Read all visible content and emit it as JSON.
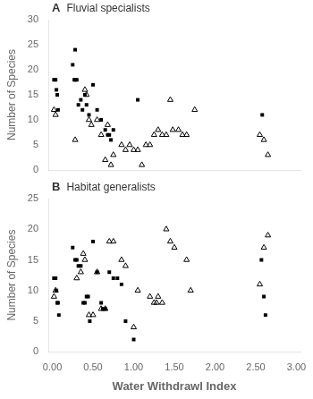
{
  "chart_data": [
    {
      "type": "scatter",
      "title": "Fluvial specialists",
      "annotations": [
        "A"
      ],
      "ylabel": "Number of Species",
      "series": [
        {
          "marker": "square",
          "color": "#000000",
          "x": [
            0.02,
            0.04,
            0.05,
            0.06,
            0.07,
            0.25,
            0.27,
            0.28,
            0.28,
            0.3,
            0.32,
            0.35,
            0.37,
            0.4,
            0.42,
            0.45,
            0.5,
            0.55,
            0.6,
            0.65,
            0.68,
            0.7,
            0.72,
            0.75,
            1.05,
            2.58
          ],
          "values": [
            18,
            18,
            16,
            15,
            12,
            21,
            18,
            18,
            24,
            18,
            13,
            14,
            12,
            15,
            13,
            11,
            17,
            12,
            10,
            8,
            7,
            7,
            6,
            8,
            14,
            11
          ]
        },
        {
          "marker": "triangle_open",
          "color": "#000000",
          "x": [
            0.02,
            0.04,
            0.28,
            0.4,
            0.42,
            0.45,
            0.48,
            0.55,
            0.6,
            0.65,
            0.68,
            0.72,
            0.75,
            0.85,
            0.9,
            0.95,
            1.0,
            1.05,
            1.1,
            1.15,
            1.2,
            1.25,
            1.3,
            1.35,
            1.4,
            1.45,
            1.48,
            1.55,
            1.6,
            1.65,
            1.75,
            2.55,
            2.6,
            2.65
          ],
          "values": [
            12,
            11,
            6,
            16,
            15,
            10,
            9,
            10,
            7,
            2,
            9,
            1,
            3,
            5,
            4,
            5,
            4,
            4,
            1,
            5,
            5,
            7,
            8,
            7,
            7,
            14,
            8,
            8,
            7,
            7,
            12,
            7,
            6,
            3
          ]
        }
      ],
      "xlim": [
        -0.05,
        3.05
      ],
      "xticks": [
        0,
        0.5,
        1,
        1.5,
        2,
        2.5,
        3
      ],
      "ylim": [
        0,
        30
      ],
      "yticks": [
        0,
        5,
        10,
        15,
        20,
        25,
        30
      ],
      "grid": false,
      "tick_labels": "y"
    },
    {
      "type": "scatter",
      "title": "Habitat generalists",
      "annotations": [
        "B"
      ],
      "ylabel": "Number of Species",
      "xlabel": "Water Withdrawl Index",
      "series": [
        {
          "marker": "square",
          "color": "#000000",
          "x": [
            0.02,
            0.04,
            0.05,
            0.06,
            0.07,
            0.08,
            0.25,
            0.28,
            0.3,
            0.32,
            0.35,
            0.38,
            0.4,
            0.42,
            0.44,
            0.46,
            0.5,
            0.55,
            0.6,
            0.62,
            0.65,
            0.7,
            0.75,
            0.8,
            0.85,
            0.9,
            1.0,
            2.57,
            2.6,
            2.62
          ],
          "values": [
            12,
            12,
            10,
            8,
            8,
            6,
            17,
            15,
            15,
            14,
            14,
            8,
            8,
            9,
            9,
            5,
            18,
            13,
            8,
            7,
            7,
            13,
            12,
            12,
            11,
            5,
            2,
            15,
            9,
            6
          ]
        },
        {
          "marker": "triangle_open",
          "color": "#000000",
          "x": [
            0.02,
            0.04,
            0.3,
            0.35,
            0.38,
            0.4,
            0.45,
            0.5,
            0.55,
            0.6,
            0.65,
            0.7,
            0.75,
            0.85,
            0.9,
            1.0,
            1.05,
            1.2,
            1.25,
            1.28,
            1.3,
            1.35,
            1.4,
            1.45,
            1.5,
            1.65,
            1.7,
            2.55,
            2.6,
            2.65
          ],
          "values": [
            9,
            10,
            12,
            13,
            16,
            15,
            6,
            6,
            13,
            7,
            7,
            18,
            18,
            15,
            14,
            4,
            10,
            9,
            8,
            8,
            9,
            8,
            20,
            18,
            17,
            15,
            10,
            11,
            17,
            19
          ]
        }
      ],
      "xlim": [
        -0.05,
        3.05
      ],
      "xticks": [
        {
          "value": 0,
          "label": "0.00"
        },
        {
          "value": 0.5,
          "label": "0.50"
        },
        {
          "value": 1,
          "label": "1.00"
        },
        {
          "value": 1.5,
          "label": "1.50"
        },
        {
          "value": 2,
          "label": "2.00"
        },
        {
          "value": 2.5,
          "label": "2.50"
        },
        {
          "value": 3,
          "label": "3.00"
        }
      ],
      "ylim": [
        0,
        25
      ],
      "yticks": [
        0,
        5,
        10,
        15,
        20,
        25
      ],
      "grid": false
    }
  ]
}
